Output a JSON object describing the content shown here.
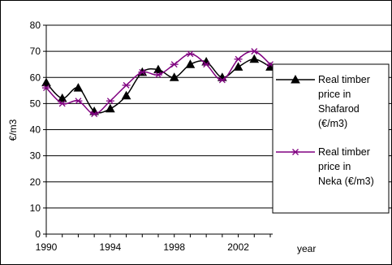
{
  "chart_data": {
    "type": "line",
    "title": "",
    "xlabel": "year",
    "ylabel": "€/m3",
    "xlim": [
      1990,
      2004
    ],
    "ylim": [
      0,
      80
    ],
    "x_ticks": [
      "1990",
      "1994",
      "1998",
      "2002"
    ],
    "y_ticks": [
      "0",
      "10",
      "20",
      "30",
      "40",
      "50",
      "60",
      "70",
      "80"
    ],
    "grid": "horizontal",
    "legend_position": "right",
    "x": [
      1990,
      1991,
      1992,
      1993,
      1994,
      1995,
      1996,
      1997,
      1998,
      1999,
      2000,
      2001,
      2002,
      2003,
      2004
    ],
    "series": [
      {
        "name": "Real timber price in Shafarod (€/m3)",
        "legend_lines": [
          "Real timber",
          "price in",
          "Shafarod",
          "(€/m3)"
        ],
        "marker": "triangle",
        "color": "#000000",
        "values": [
          58,
          52,
          56,
          47,
          48,
          53,
          62,
          63,
          60,
          65,
          66,
          60,
          64,
          67,
          64
        ]
      },
      {
        "name": "Real timber price in Neka (€/m3)",
        "legend_lines": [
          "Real timber",
          "price in",
          "Neka (€/m3)"
        ],
        "marker": "asterisk",
        "color": "#800080",
        "values": [
          56,
          50,
          51,
          46,
          51,
          57,
          62,
          61,
          65,
          69,
          65,
          59,
          67,
          70,
          65
        ]
      }
    ]
  }
}
